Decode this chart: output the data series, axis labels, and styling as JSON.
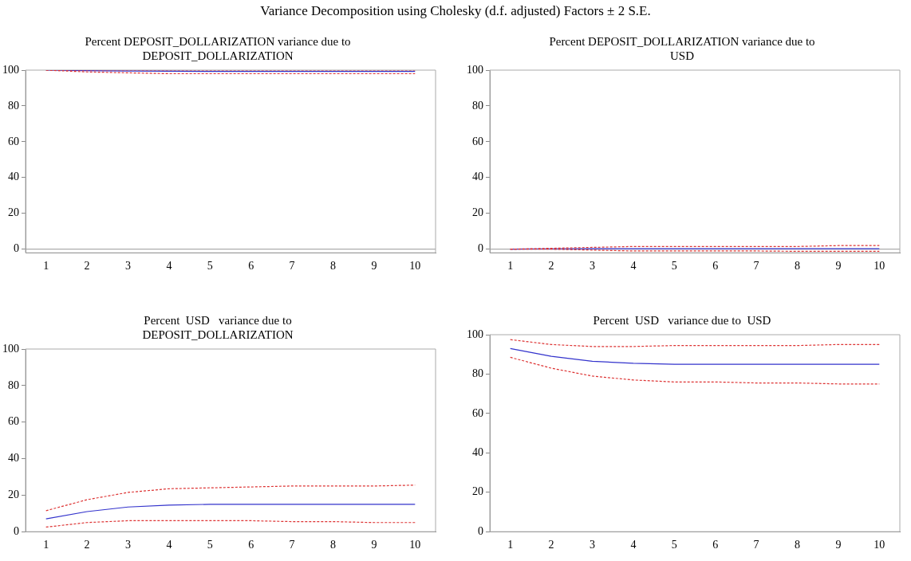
{
  "chart_data": [
    {
      "type": "line",
      "title": "Percent DEPOSIT_DOLLARIZATION variance due to\nDEPOSIT_DOLLARIZATION",
      "annotations": [
        "Variance Decomposition using Cholesky (d.f. adjusted) Factors ± 2 S.E."
      ],
      "categories": [
        "1",
        "2",
        "3",
        "4",
        "5",
        "6",
        "7",
        "8",
        "9",
        "10"
      ],
      "ylim": [
        -2,
        100
      ],
      "yticks": [
        0,
        20,
        40,
        60,
        80,
        100
      ],
      "grid": false,
      "legend": false,
      "marker": "none",
      "ref_lines": [
        {
          "axis": "y",
          "value": 0,
          "color": "#999999"
        }
      ],
      "series": [
        {
          "color": "#3333cc",
          "line_style": "solid",
          "values": [
            100,
            99.7,
            99.5,
            99.4,
            99.3,
            99.3,
            99.3,
            99.3,
            99.3,
            99.3
          ]
        },
        {
          "color": "#dd3333",
          "line_style": "dashed",
          "values": [
            100,
            100,
            100,
            100,
            100,
            100,
            100,
            100,
            100,
            100
          ]
        },
        {
          "color": "#dd3333",
          "line_style": "dashed",
          "values": [
            100,
            99,
            98.5,
            98,
            98,
            98,
            98,
            98,
            98,
            98
          ]
        }
      ]
    },
    {
      "type": "line",
      "title": "Percent DEPOSIT_DOLLARIZATION variance due to\nUSD",
      "categories": [
        "1",
        "2",
        "3",
        "4",
        "5",
        "6",
        "7",
        "8",
        "9",
        "10"
      ],
      "ylim": [
        -2,
        100
      ],
      "yticks": [
        0,
        20,
        40,
        60,
        80,
        100
      ],
      "grid": false,
      "legend": false,
      "marker": "none",
      "ref_lines": [
        {
          "axis": "y",
          "value": 0,
          "color": "#999999"
        }
      ],
      "series": [
        {
          "color": "#3333cc",
          "line_style": "solid",
          "values": [
            0,
            0.2,
            0.3,
            0.3,
            0.3,
            0.3,
            0.3,
            0.3,
            0.3,
            0.3
          ]
        },
        {
          "color": "#dd3333",
          "line_style": "dashed",
          "values": [
            0,
            0.5,
            1,
            1.5,
            1.5,
            1.5,
            1.5,
            1.5,
            2,
            2
          ]
        },
        {
          "color": "#dd3333",
          "line_style": "dashed",
          "values": [
            0,
            0,
            -0.5,
            -1,
            -1,
            -1,
            -1,
            -1.2,
            -1.2,
            -1.2
          ]
        }
      ]
    },
    {
      "type": "line",
      "title": "Percent  USD   variance due to\nDEPOSIT_DOLLARIZATION",
      "categories": [
        "1",
        "2",
        "3",
        "4",
        "5",
        "6",
        "7",
        "8",
        "9",
        "10"
      ],
      "ylim": [
        0,
        100
      ],
      "yticks": [
        0,
        20,
        40,
        60,
        80,
        100
      ],
      "grid": false,
      "legend": false,
      "marker": "none",
      "series": [
        {
          "color": "#3333cc",
          "line_style": "solid",
          "values": [
            7,
            11,
            13.5,
            14.5,
            15,
            15,
            15,
            15,
            15,
            15
          ]
        },
        {
          "color": "#dd3333",
          "line_style": "dashed",
          "values": [
            11.5,
            17.5,
            21.5,
            23.5,
            24,
            24.5,
            25,
            25,
            25,
            25.5
          ]
        },
        {
          "color": "#dd3333",
          "line_style": "dashed",
          "values": [
            2.5,
            5,
            6,
            6,
            6,
            6,
            5.5,
            5.5,
            5,
            5
          ]
        }
      ]
    },
    {
      "type": "line",
      "title": "Percent  USD   variance due to  USD",
      "categories": [
        "1",
        "2",
        "3",
        "4",
        "5",
        "6",
        "7",
        "8",
        "9",
        "10"
      ],
      "ylim": [
        0,
        100
      ],
      "yticks": [
        0,
        20,
        40,
        60,
        80,
        100
      ],
      "grid": false,
      "legend": false,
      "marker": "none",
      "series": [
        {
          "color": "#3333cc",
          "line_style": "solid",
          "values": [
            93,
            89,
            86.5,
            85.5,
            85,
            85,
            85,
            85,
            85,
            85
          ]
        },
        {
          "color": "#dd3333",
          "line_style": "dashed",
          "values": [
            97.5,
            95,
            94,
            94,
            94.5,
            94.5,
            94.5,
            94.5,
            95,
            95
          ]
        },
        {
          "color": "#dd3333",
          "line_style": "dashed",
          "values": [
            88.5,
            83,
            79,
            77,
            76,
            76,
            75.5,
            75.5,
            75,
            75
          ]
        }
      ]
    }
  ]
}
